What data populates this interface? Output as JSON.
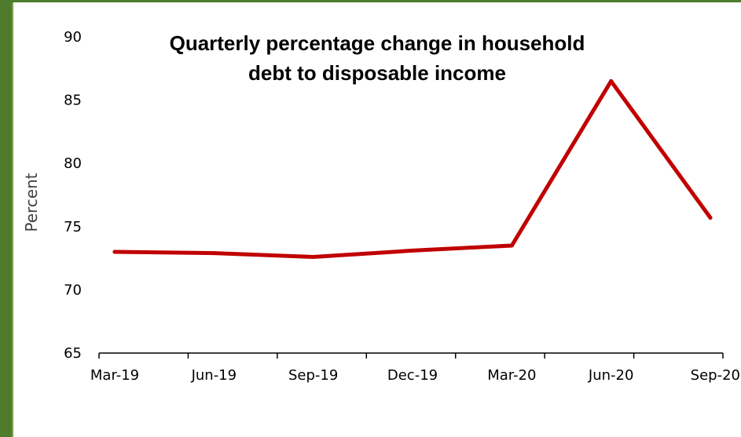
{
  "chart_data": {
    "type": "line",
    "title_lines": [
      "Quarterly percentage change in household",
      "debt to disposable income"
    ],
    "xlabel": "",
    "ylabel": "Percent",
    "categories": [
      "Mar-19",
      "Jun-19",
      "Sep-19",
      "Dec-19",
      "Mar-20",
      "Jun-20",
      "Sep-20"
    ],
    "series": [
      {
        "values": [
          73.0,
          72.9,
          72.6,
          73.1,
          73.5,
          86.5,
          75.7
        ]
      }
    ],
    "ylim": [
      65,
      90
    ],
    "yticks": [
      "65",
      "70",
      "75",
      "80",
      "85",
      "90"
    ],
    "grid": false,
    "legend": "none",
    "line_color": "#c00000",
    "frame_color": "#4f7b2c"
  }
}
